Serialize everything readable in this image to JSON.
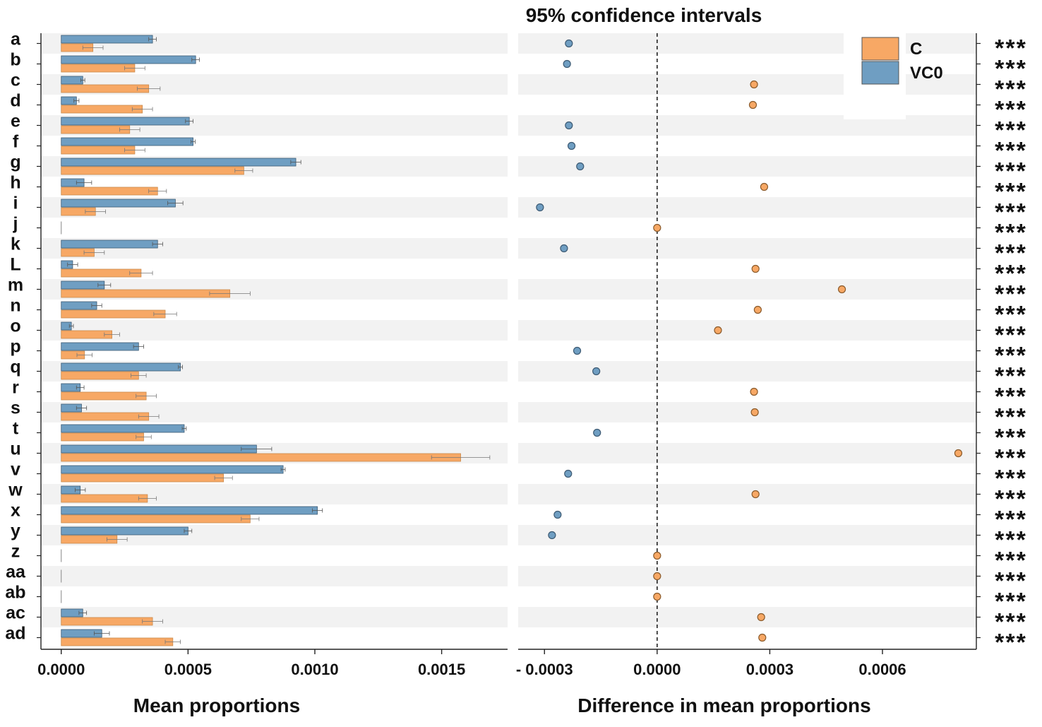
{
  "chart_data": {
    "type": "bar",
    "title": "95% confidence intervals",
    "categories": [
      "a",
      "b",
      "c",
      "d",
      "e",
      "f",
      "g",
      "h",
      "i",
      "j",
      "k",
      "L",
      "m",
      "n",
      "o",
      "p",
      "q",
      "r",
      "s",
      "t",
      "u",
      "v",
      "w",
      "x",
      "y",
      "z",
      "aa",
      "ab",
      "ac",
      "ad"
    ],
    "left_panel": {
      "xlabel": "Mean proportions",
      "xlim": [
        -8e-05,
        0.00176
      ],
      "ticks": [
        0.0,
        0.0005,
        0.001,
        0.0015
      ],
      "tick_labels": [
        "0.0000",
        "0.0005",
        "0.0010",
        "0.0015"
      ],
      "series": [
        {
          "name": "VC0",
          "color": "#6f9ec2",
          "values": [
            0.00036,
            0.00053,
            8.5e-05,
            6e-05,
            0.000505,
            0.00052,
            0.000925,
            9e-05,
            0.00045,
            0.0,
            0.00038,
            4.5e-05,
            0.00017,
            0.00014,
            4e-05,
            0.000305,
            0.00047,
            7.5e-05,
            8e-05,
            0.000485,
            0.00077,
            0.000875,
            7.5e-05,
            0.00101,
            0.0005,
            0.0,
            0.0,
            0.0,
            8.5e-05,
            0.00016
          ],
          "errors": [
            1.5e-05,
            1.5e-05,
            8e-06,
            1e-05,
            1.5e-05,
            8e-06,
            2e-05,
            3e-05,
            3e-05,
            0.0,
            2e-05,
            2e-05,
            2.5e-05,
            2e-05,
            8e-06,
            2e-05,
            8e-06,
            1.5e-05,
            2e-05,
            8e-06,
            6e-05,
            8e-06,
            2e-05,
            2e-05,
            1.5e-05,
            0.0,
            0.0,
            0.0,
            1.5e-05,
            3e-05
          ]
        },
        {
          "name": "C",
          "color": "#f7a865",
          "values": [
            0.000125,
            0.00029,
            0.000345,
            0.00032,
            0.00027,
            0.00029,
            0.00072,
            0.00038,
            0.000135,
            0.0,
            0.00013,
            0.000315,
            0.000665,
            0.00041,
            0.0002,
            9.2e-05,
            0.000305,
            0.000335,
            0.000345,
            0.000325,
            0.001575,
            0.00064,
            0.00034,
            0.000745,
            0.00022,
            0.0,
            0.0,
            0.0,
            0.00036,
            0.00044
          ],
          "errors": [
            4e-05,
            4e-05,
            4.5e-05,
            4e-05,
            4e-05,
            4e-05,
            3.5e-05,
            3.5e-05,
            4e-05,
            0.0,
            4e-05,
            4.5e-05,
            8e-05,
            4.5e-05,
            3e-05,
            3e-05,
            3e-05,
            4e-05,
            4e-05,
            3e-05,
            0.000115,
            3.5e-05,
            3.5e-05,
            3.5e-05,
            4e-05,
            0.0,
            0.0,
            0.0,
            4e-05,
            3e-05
          ]
        }
      ]
    },
    "right_panel": {
      "xlabel": "Difference in mean proportions",
      "xlim": [
        -0.00037,
        0.00085
      ],
      "ticks": [
        -0.0003,
        0.0,
        0.0003,
        0.0006
      ],
      "tick_labels": [
        "- 0.0003",
        "0.0000",
        "0.0003",
        "0.0006"
      ],
      "reference_line": 0.0,
      "differences": [
        -0.000235,
        -0.00024,
        0.000258,
        0.000255,
        -0.000235,
        -0.000228,
        -0.000205,
        0.000285,
        -0.000312,
        0.0,
        -0.000248,
        0.000262,
        0.000492,
        0.000268,
        0.000162,
        -0.000213,
        -0.000162,
        0.000258,
        0.00026,
        -0.00016,
        0.000802,
        -0.000237,
        0.000262,
        -0.000265,
        -0.00028,
        0.0,
        0.0,
        0.0,
        0.000277,
        0.00028
      ],
      "point_series": [
        "VC0",
        "VC0",
        "C",
        "C",
        "VC0",
        "VC0",
        "VC0",
        "C",
        "VC0",
        "C",
        "VC0",
        "C",
        "C",
        "C",
        "C",
        "VC0",
        "VC0",
        "C",
        "C",
        "VC0",
        "C",
        "VC0",
        "C",
        "VC0",
        "VC0",
        "C",
        "C",
        "C",
        "C",
        "C"
      ]
    },
    "significance": [
      "***",
      "***",
      "***",
      "***",
      "***",
      "***",
      "***",
      "***",
      "***",
      "***",
      "***",
      "***",
      "***",
      "***",
      "***",
      "***",
      "***",
      "***",
      "***",
      "***",
      "***",
      "***",
      "***",
      "***",
      "***",
      "***",
      "***",
      "***",
      "***",
      "***"
    ],
    "legend": {
      "position": "top-right",
      "entries": [
        {
          "name": "C",
          "color": "#f7a865"
        },
        {
          "name": "VC0",
          "color": "#6f9ec2"
        }
      ]
    },
    "colors": {
      "C": "#f7a865",
      "VC0": "#6f9ec2",
      "stripe": "#f2f2f2",
      "outline": "#3d5a73",
      "outline_c": "#8a5a2b"
    }
  }
}
